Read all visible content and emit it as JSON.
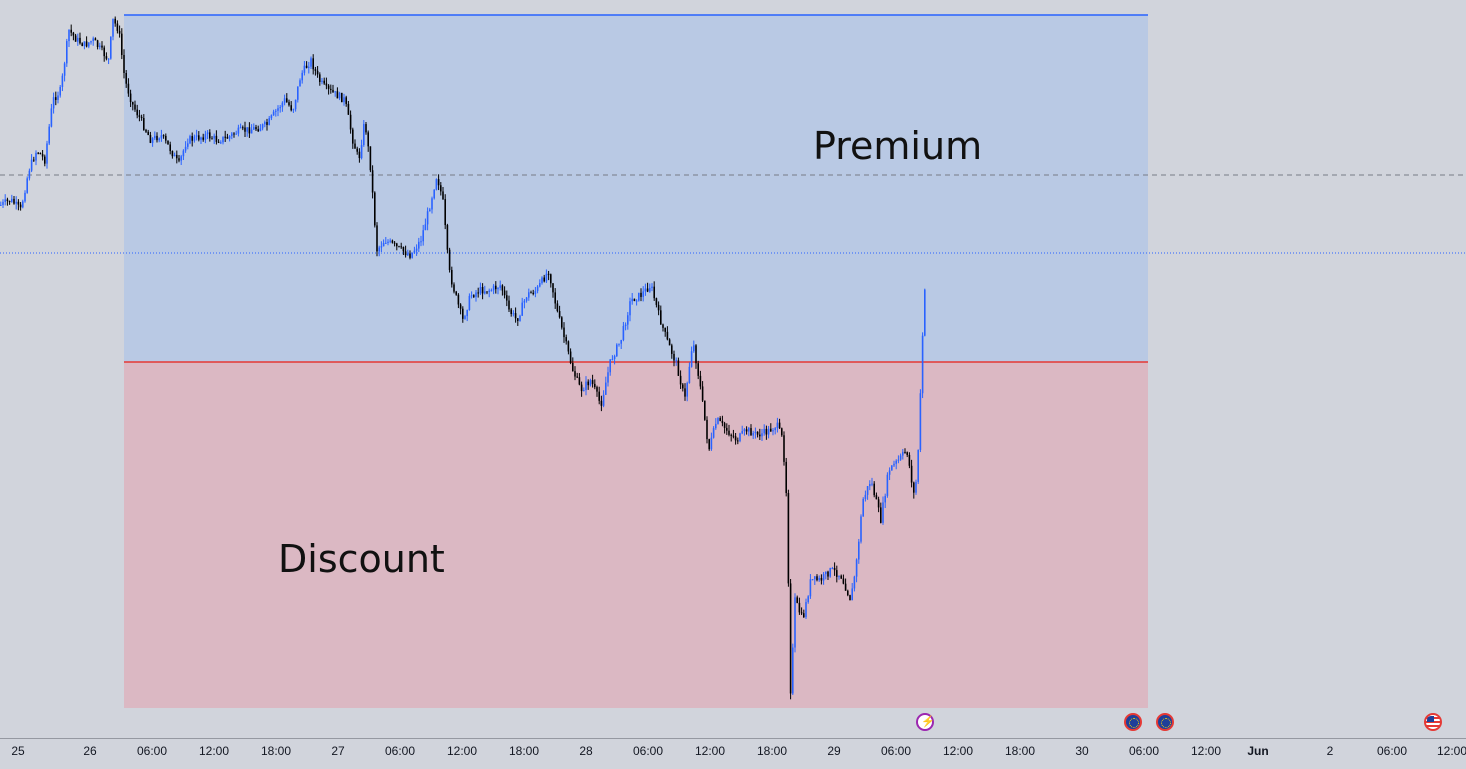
{
  "zones": {
    "premium": {
      "label": "Premium",
      "color": "#b9c9e4"
    },
    "discount": {
      "label": "Discount",
      "color": "#dbb8c3"
    },
    "equilibrium_color": "#e53935",
    "range_high_color": "#2962ff"
  },
  "time_axis": {
    "ticks": [
      {
        "label": "25",
        "bold": false
      },
      {
        "label": "26",
        "bold": false
      },
      {
        "label": "06:00",
        "bold": false
      },
      {
        "label": "12:00",
        "bold": false
      },
      {
        "label": "18:00",
        "bold": false
      },
      {
        "label": "27",
        "bold": false
      },
      {
        "label": "06:00",
        "bold": false
      },
      {
        "label": "12:00",
        "bold": false
      },
      {
        "label": "18:00",
        "bold": false
      },
      {
        "label": "28",
        "bold": false
      },
      {
        "label": "06:00",
        "bold": false
      },
      {
        "label": "12:00",
        "bold": false
      },
      {
        "label": "18:00",
        "bold": false
      },
      {
        "label": "29",
        "bold": false
      },
      {
        "label": "06:00",
        "bold": false
      },
      {
        "label": "12:00",
        "bold": false
      },
      {
        "label": "18:00",
        "bold": false
      },
      {
        "label": "30",
        "bold": false
      },
      {
        "label": "06:00",
        "bold": false
      },
      {
        "label": "12:00",
        "bold": false
      },
      {
        "label": "Jun",
        "bold": true
      },
      {
        "label": "2",
        "bold": false
      },
      {
        "label": "06:00",
        "bold": false
      },
      {
        "label": "12:00",
        "bold": false
      }
    ]
  },
  "events": [
    {
      "icon": "lightning-event-icon",
      "type": "lightning"
    },
    {
      "icon": "eu-flag-event-icon",
      "type": "eu"
    },
    {
      "icon": "eu-flag-event-icon",
      "type": "eu"
    },
    {
      "icon": "us-flag-event-icon",
      "type": "us"
    }
  ],
  "colors": {
    "up_candle": "#2962ff",
    "down_candle": "#000000",
    "background": "#d1d4dc"
  }
}
